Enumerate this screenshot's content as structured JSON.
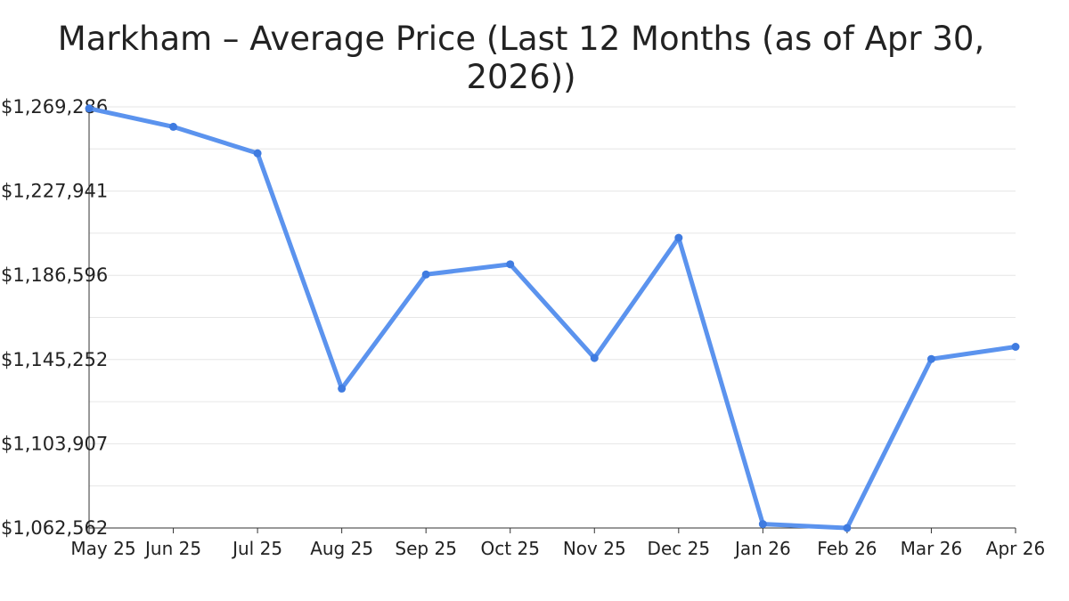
{
  "chart_data": {
    "type": "line",
    "title": "Markham – Average Price (Last 12 Months (as of Apr 30, 2026))",
    "xlabel": "",
    "ylabel": "",
    "categories": [
      "May 25",
      "Jun 25",
      "Jul 25",
      "Aug 25",
      "Sep 25",
      "Oct 25",
      "Nov 25",
      "Dec 25",
      "Jan 26",
      "Feb 26",
      "Mar 26",
      "Apr 26"
    ],
    "y_tick_labels": [
      "$1,269,286",
      "$1,227,941",
      "$1,186,596",
      "$1,145,252",
      "$1,103,907",
      "$1,062,562"
    ],
    "ylim": [
      1062562,
      1269286
    ],
    "grid": true,
    "series": [
      {
        "values": [
          1268500,
          1259500,
          1246500,
          1131000,
          1187000,
          1192000,
          1146000,
          1205000,
          1064500,
          1062562,
          1145500,
          1151500
        ]
      }
    ],
    "colors": {
      "line": "#5b93ee",
      "marker": "#3f7be0",
      "grid": "#e6e6e6",
      "axis": "#333333"
    }
  }
}
